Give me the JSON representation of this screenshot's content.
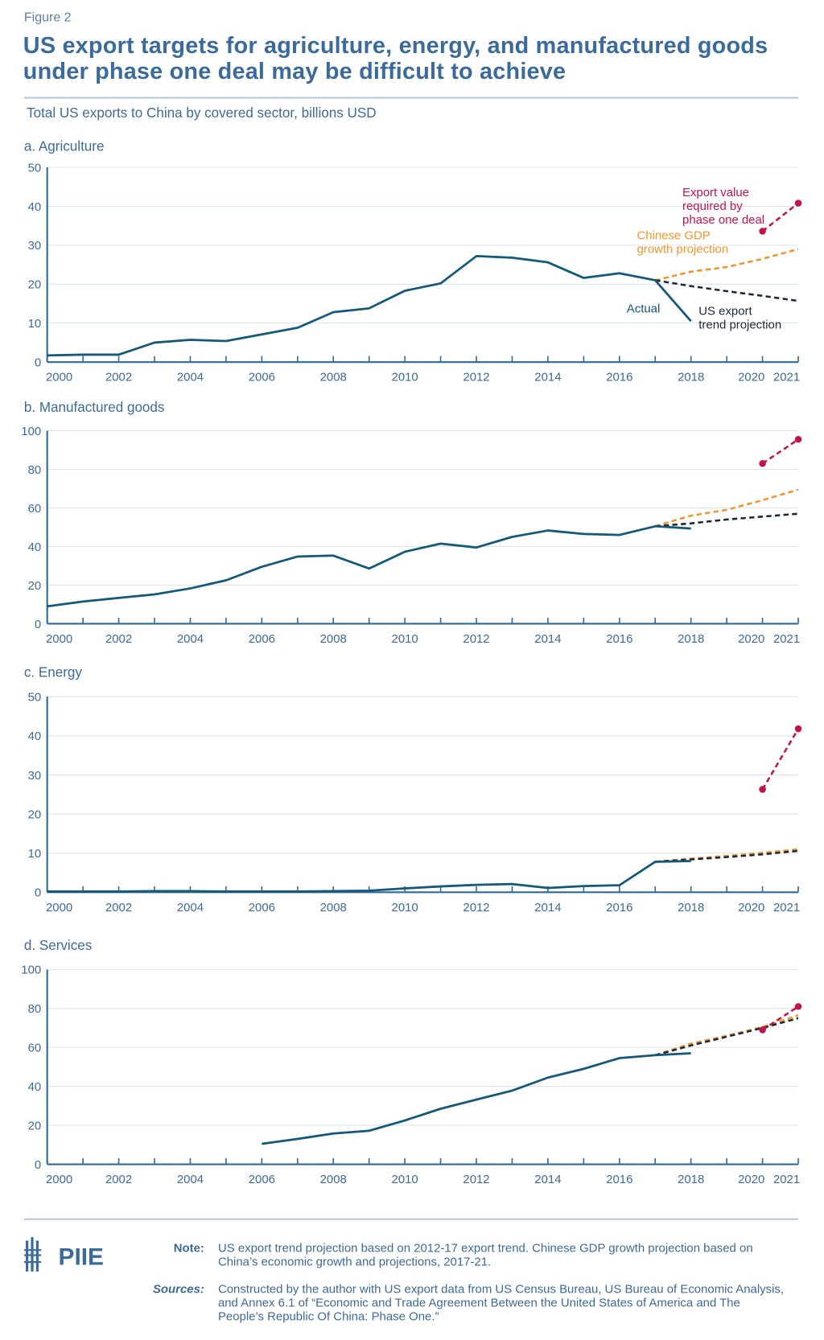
{
  "figure_label": "Figure 2",
  "title": "US export targets for agriculture, energy, and manufactured goods under phase one deal may be difficult to achieve",
  "subtitle": "Total US exports to China by covered sector, billions USD",
  "colors": {
    "actual": "#14587a",
    "gdp_projection": "#f3952a",
    "trend_projection": "#1e2836",
    "required": "#c2124f",
    "text": "#3d6a96",
    "grid": "#d9e3ec"
  },
  "chart_data": [
    {
      "type": "line",
      "title": "a. Agriculture",
      "ylim": [
        0,
        50
      ],
      "yticks": [
        0,
        10,
        20,
        30,
        40,
        50
      ],
      "xlim": [
        2000,
        2021
      ],
      "xticks": [
        2000,
        2002,
        2004,
        2006,
        2008,
        2010,
        2012,
        2014,
        2016,
        2018,
        2020,
        2021
      ],
      "grid": true,
      "series": [
        {
          "name": "Actual",
          "x": [
            2000,
            2001,
            2002,
            2003,
            2004,
            2005,
            2006,
            2007,
            2008,
            2009,
            2010,
            2011,
            2012,
            2013,
            2014,
            2015,
            2016,
            2017,
            2018
          ],
          "y": [
            1.7,
            1.9,
            1.9,
            5.0,
            5.7,
            5.4,
            7.1,
            8.8,
            12.8,
            13.8,
            18.3,
            20.2,
            27.2,
            26.8,
            25.6,
            21.6,
            22.8,
            21.0,
            10.5
          ]
        },
        {
          "name": "Chinese GDP growth projection",
          "x": [
            2017,
            2018,
            2019,
            2020,
            2021
          ],
          "y": [
            21.0,
            23.2,
            24.4,
            26.5,
            29.0
          ]
        },
        {
          "name": "US export trend projection",
          "x": [
            2017,
            2018,
            2019,
            2020,
            2021
          ],
          "y": [
            21.0,
            19.5,
            18.2,
            17.0,
            15.7
          ]
        },
        {
          "name": "Export value required by phase one deal",
          "x": [
            2020,
            2021
          ],
          "y": [
            33.6,
            40.8
          ]
        }
      ],
      "annotations": {
        "required": [
          "Export value",
          "required by",
          "phase one deal"
        ],
        "gdp": [
          "Chinese GDP",
          "growth projection"
        ],
        "actual": [
          "Actual"
        ],
        "trend": [
          "US export",
          "trend projection"
        ]
      }
    },
    {
      "type": "line",
      "title": "b. Manufactured goods",
      "ylim": [
        0,
        100
      ],
      "yticks": [
        0,
        20,
        40,
        60,
        80,
        100
      ],
      "xlim": [
        2000,
        2021
      ],
      "xticks": [
        2000,
        2002,
        2004,
        2006,
        2008,
        2010,
        2012,
        2014,
        2016,
        2018,
        2020,
        2021
      ],
      "grid": true,
      "series": [
        {
          "x": [
            2000,
            2001,
            2002,
            2003,
            2004,
            2005,
            2006,
            2007,
            2008,
            2009,
            2010,
            2011,
            2012,
            2013,
            2014,
            2015,
            2016,
            2017,
            2018
          ],
          "y": [
            9.0,
            11.5,
            13.4,
            15.2,
            18.3,
            22.5,
            29.5,
            34.8,
            35.3,
            28.6,
            37.3,
            41.5,
            39.5,
            45.0,
            48.3,
            46.5,
            46.0,
            50.5,
            49.3
          ]
        },
        {
          "x": [
            2017,
            2018,
            2019,
            2020,
            2021
          ],
          "y": [
            50.5,
            56.0,
            59.0,
            64.0,
            69.5
          ]
        },
        {
          "x": [
            2017,
            2018,
            2019,
            2020,
            2021
          ],
          "y": [
            50.5,
            52.0,
            54.0,
            55.5,
            57.0
          ]
        },
        {
          "x": [
            2020,
            2021
          ],
          "y": [
            83.0,
            95.5
          ]
        }
      ]
    },
    {
      "type": "line",
      "title": "c. Energy",
      "ylim": [
        0,
        50
      ],
      "yticks": [
        0,
        10,
        20,
        30,
        40,
        50
      ],
      "xlim": [
        2000,
        2021
      ],
      "xticks": [
        2000,
        2002,
        2004,
        2006,
        2008,
        2010,
        2012,
        2014,
        2016,
        2018,
        2020,
        2021
      ],
      "grid": true,
      "series": [
        {
          "x": [
            2000,
            2001,
            2002,
            2003,
            2004,
            2005,
            2006,
            2007,
            2008,
            2009,
            2010,
            2011,
            2012,
            2013,
            2014,
            2015,
            2016,
            2017,
            2018
          ],
          "y": [
            0.2,
            0.2,
            0.2,
            0.3,
            0.3,
            0.2,
            0.2,
            0.2,
            0.3,
            0.4,
            1.0,
            1.5,
            1.9,
            2.1,
            1.1,
            1.6,
            1.8,
            7.8,
            8.0
          ]
        },
        {
          "x": [
            2017,
            2018,
            2019,
            2020,
            2021
          ],
          "y": [
            7.8,
            8.6,
            9.3,
            10.1,
            11.0
          ]
        },
        {
          "x": [
            2017,
            2018,
            2019,
            2020,
            2021
          ],
          "y": [
            7.8,
            8.4,
            9.0,
            9.7,
            10.6
          ]
        },
        {
          "x": [
            2020,
            2021
          ],
          "y": [
            26.3,
            41.8
          ]
        }
      ]
    },
    {
      "type": "line",
      "title": "d. Services",
      "ylim": [
        0,
        100
      ],
      "yticks": [
        0,
        20,
        40,
        60,
        80,
        100
      ],
      "xlim": [
        2000,
        2021
      ],
      "xticks": [
        2000,
        2002,
        2004,
        2006,
        2008,
        2010,
        2012,
        2014,
        2016,
        2018,
        2020,
        2021
      ],
      "grid": true,
      "series": [
        {
          "x": [
            2006,
            2007,
            2008,
            2009,
            2010,
            2011,
            2012,
            2013,
            2014,
            2015,
            2016,
            2017,
            2018
          ],
          "y": [
            10.5,
            13.0,
            15.8,
            17.2,
            22.5,
            28.5,
            33.2,
            37.8,
            44.5,
            49.0,
            54.5,
            56.0,
            57.0
          ]
        },
        {
          "x": [
            2017,
            2018,
            2019,
            2020,
            2021
          ],
          "y": [
            56.0,
            62.0,
            66.0,
            70.5,
            76.5
          ]
        },
        {
          "x": [
            2017,
            2018,
            2019,
            2020,
            2021
          ],
          "y": [
            56.0,
            61.0,
            65.5,
            70.0,
            75.0
          ]
        },
        {
          "x": [
            2020,
            2021
          ],
          "y": [
            69.0,
            81.0
          ]
        }
      ]
    }
  ],
  "footer": {
    "logo_text": "PIIE",
    "note_label": "Note:",
    "note": "US export trend projection based on 2012-17 export trend. Chinese GDP growth projection based on China’s economic growth and projections, 2017-21.",
    "sources_label": "Sources:",
    "sources": "Constructed by the author with US export data from US Census Bureau, US Bureau of Economic Analysis, and Annex 6.1 of “Economic and Trade Agreement Between the United States of America and The People’s Republic Of China: Phase One.”"
  }
}
